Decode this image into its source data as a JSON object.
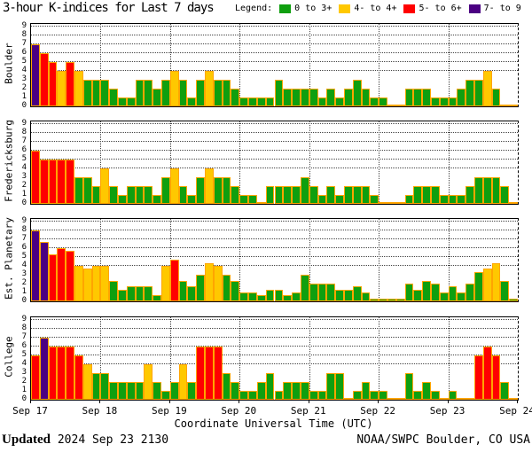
{
  "title": "3-hour K-indices for Last 7 days",
  "legend": {
    "label": "Legend:",
    "bins": [
      {
        "label": "0 to 3+",
        "color": "#0F9F0F",
        "max": 3.66
      },
      {
        "label": "4- to 4+",
        "color": "#FFC800",
        "max": 4.66
      },
      {
        "label": "5- to 6+",
        "color": "#FF0000",
        "max": 6.66
      },
      {
        "label": "7- to 9",
        "color": "#4B0082",
        "max": 9
      }
    ]
  },
  "colors": {
    "bar_outline": "#FFA500",
    "grid": "#444444",
    "frame": "#000000",
    "background": "#FFFFFF"
  },
  "x_axis": {
    "labels": [
      "Sep 17",
      "Sep 18",
      "Sep 19",
      "Sep 20",
      "Sep 21",
      "Sep 22",
      "Sep 23",
      "Sep 24"
    ],
    "title": "Coordinate Universal Time (UTC)"
  },
  "y_axis": {
    "ticks": [
      0,
      1,
      2,
      3,
      4,
      5,
      6,
      7,
      8,
      9
    ],
    "gridline_values": [
      4,
      5,
      6,
      7,
      8,
      9
    ]
  },
  "footer": {
    "updated_label": "Updated",
    "updated_value": "2024 Sep 23 2130",
    "source": "NOAA/SWPC Boulder, CO USA"
  },
  "chart_data": {
    "type": "bar",
    "title": "3-hour K-indices for Last 7 days",
    "interval_hours": 3,
    "bars_per_day": 8,
    "days": [
      "Sep 17",
      "Sep 18",
      "Sep 19",
      "Sep 20",
      "Sep 21",
      "Sep 22",
      "Sep 23"
    ],
    "ylim": [
      0,
      9
    ],
    "color_rule": "green <=3+, yellow 4- to 4+, red 5- to 6+, purple 7- to 9",
    "series": [
      {
        "name": "Boulder",
        "values": [
          7,
          6,
          5,
          4,
          5,
          4,
          3,
          3,
          3,
          2,
          1,
          1,
          3,
          3,
          2,
          3,
          4,
          3,
          1,
          3,
          4,
          3,
          3,
          2,
          1,
          1,
          1,
          1,
          3,
          2,
          2,
          2,
          2,
          1,
          2,
          1,
          2,
          3,
          2,
          1,
          1,
          0,
          0,
          2,
          2,
          2,
          1,
          1,
          1,
          2,
          3,
          3,
          4,
          2,
          0,
          0
        ]
      },
      {
        "name": "Fredericksburg",
        "values": [
          6,
          5,
          5,
          5,
          5,
          3,
          3,
          2,
          4,
          2,
          1,
          2,
          2,
          2,
          1,
          3,
          4,
          2,
          1,
          3,
          4,
          3,
          3,
          2,
          1,
          1,
          0,
          2,
          2,
          2,
          2,
          3,
          2,
          1,
          2,
          1,
          2,
          2,
          2,
          1,
          0,
          0,
          0,
          1,
          2,
          2,
          2,
          1,
          1,
          1,
          2,
          3,
          3,
          3,
          2,
          0
        ]
      },
      {
        "name": "Est. Planetary",
        "values": [
          8,
          6.67,
          5.33,
          6,
          5.67,
          4,
          3.67,
          4,
          4,
          2.33,
          1.33,
          1.67,
          1.67,
          1.67,
          0.67,
          4,
          4.67,
          2.33,
          1.67,
          3,
          4.33,
          4,
          3,
          2.33,
          1,
          1,
          0.67,
          1.33,
          1.33,
          0.67,
          1,
          3,
          2,
          2,
          2,
          1.33,
          1.33,
          1.67,
          1,
          0.33,
          0.33,
          0.33,
          0.33,
          2,
          1.33,
          2.33,
          2,
          1,
          1.67,
          1,
          2,
          3.33,
          3.67,
          4.33,
          2.33,
          0.33
        ]
      },
      {
        "name": "College",
        "values": [
          5,
          7,
          6,
          6,
          6,
          5,
          4,
          3,
          3,
          2,
          2,
          2,
          2,
          4,
          2,
          1,
          2,
          4,
          2,
          6,
          6,
          6,
          3,
          2,
          1,
          1,
          2,
          3,
          1,
          2,
          2,
          2,
          1,
          1,
          3,
          3,
          0,
          1,
          2,
          1,
          1,
          0,
          0,
          3,
          1,
          2,
          1,
          0,
          1,
          0,
          0,
          5,
          6,
          5,
          2,
          0
        ]
      }
    ]
  }
}
